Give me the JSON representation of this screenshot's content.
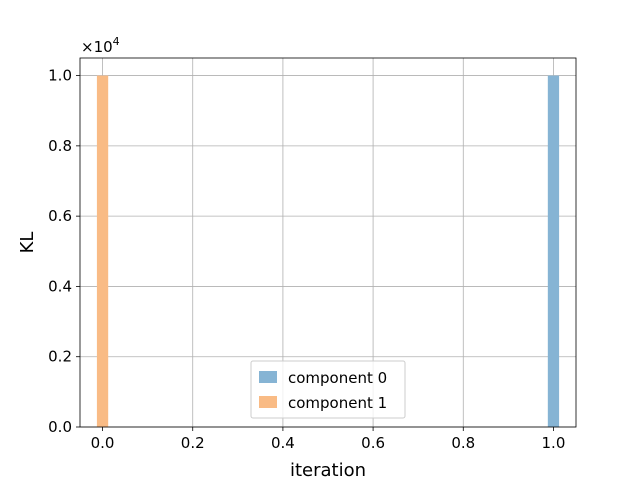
{
  "chart_data": {
    "type": "bar",
    "xlabel": "iteration",
    "ylabel": "KL",
    "y_offset_text": "×10",
    "y_offset_exponent": "4",
    "xlim": [
      -0.05,
      1.05
    ],
    "ylim": [
      0,
      10500
    ],
    "bar_width": 0.025,
    "x_ticks": [
      0.0,
      0.2,
      0.4,
      0.6,
      0.8,
      1.0
    ],
    "x_tick_labels": [
      "0.0",
      "0.2",
      "0.4",
      "0.6",
      "0.8",
      "1.0"
    ],
    "y_ticks": [
      0,
      2000,
      4000,
      6000,
      8000,
      10000
    ],
    "y_tick_labels": [
      "0.0",
      "0.2",
      "0.4",
      "0.6",
      "0.8",
      "1.0"
    ],
    "grid": true,
    "legend_position": "lower center",
    "series": [
      {
        "name": "component 0",
        "color": "#86b4d4",
        "x": [
          1.0
        ],
        "values": [
          10000
        ]
      },
      {
        "name": "component 1",
        "color": "#f9bb85",
        "x": [
          0.0
        ],
        "values": [
          10000
        ]
      }
    ]
  }
}
